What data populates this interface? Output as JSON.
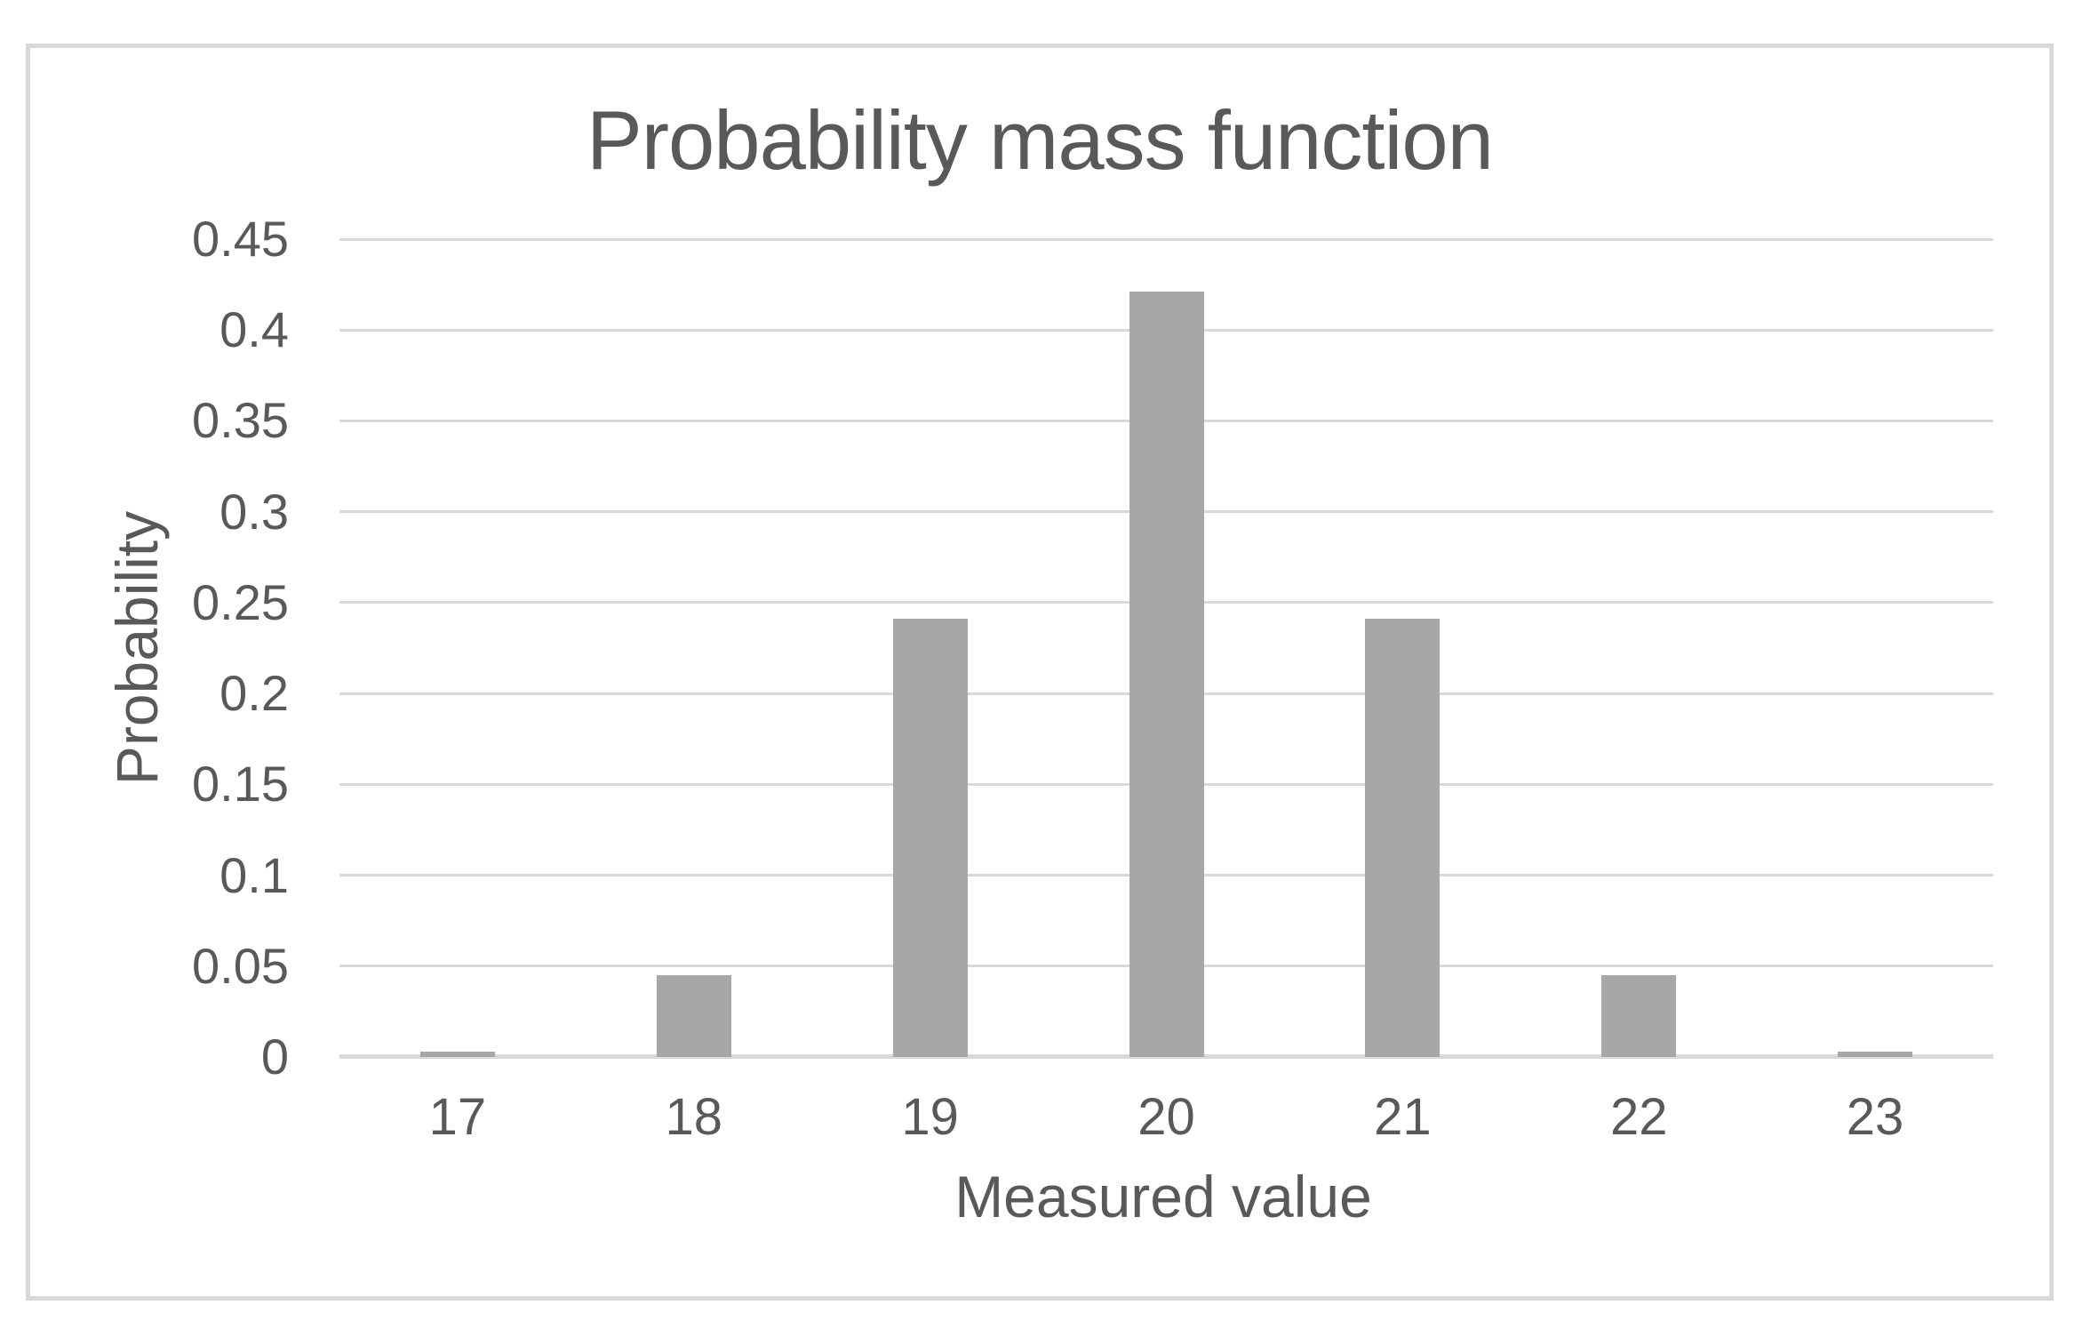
{
  "chart": {
    "colors": {
      "bar_fill": "#a7a7a7",
      "gridline": "#d9d9d9",
      "axis_line": "#d9d9d9",
      "frame_border": "#d9d9d9",
      "text": "#595959",
      "background": "#ffffff"
    }
  },
  "chart_data": {
    "type": "bar",
    "title": "Probability mass function",
    "xlabel": "Measured value",
    "ylabel": "Probability",
    "categories": [
      "17",
      "18",
      "19",
      "20",
      "21",
      "22",
      "23"
    ],
    "values": [
      0.003,
      0.045,
      0.241,
      0.421,
      0.241,
      0.045,
      0.003
    ],
    "series_name": "Probability",
    "ylim": [
      0,
      0.45
    ],
    "ytick_interval": 0.05,
    "ytick_labels": [
      "0.45",
      "0.4",
      "0.35",
      "0.3",
      "0.25",
      "0.2",
      "0.15",
      "0.1",
      "0.05",
      "0"
    ],
    "grid": true,
    "legend": false,
    "bar_color": "#a7a7a7"
  }
}
